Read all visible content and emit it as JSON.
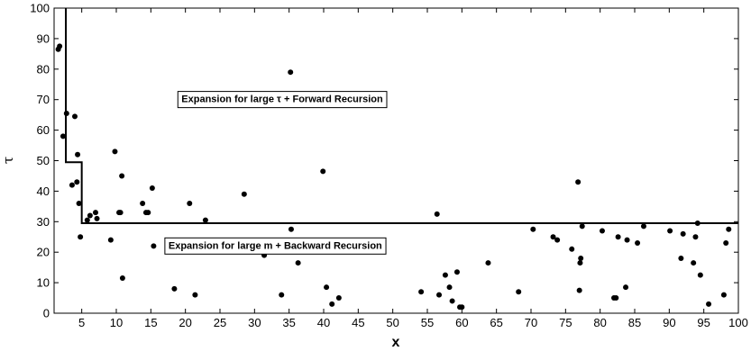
{
  "chart_data": {
    "type": "scatter",
    "xlabel": "x",
    "ylabel": "τ",
    "xlim": [
      1,
      100
    ],
    "ylim": [
      0,
      100
    ],
    "xticks": [
      5,
      10,
      15,
      20,
      25,
      30,
      35,
      40,
      45,
      50,
      55,
      60,
      65,
      70,
      75,
      80,
      85,
      90,
      95,
      100
    ],
    "yticks": [
      0,
      10,
      20,
      30,
      40,
      50,
      60,
      70,
      80,
      90,
      100
    ],
    "grid": false,
    "annotations": [
      {
        "text": "Expansion for large τ + Forward Recursion",
        "x": 34,
        "y": 70
      },
      {
        "text": "Expansion for large m + Backward Recursion",
        "x": 33,
        "y": 22
      }
    ],
    "boundary": {
      "x": [
        2.7,
        2.7,
        5,
        5,
        100
      ],
      "y": [
        100,
        49.5,
        49.5,
        29.5,
        29.5
      ]
    },
    "points": {
      "x": [
        1.6,
        1.8,
        2.3,
        2.8,
        3.6,
        4.0,
        4.3,
        4.4,
        4.6,
        4.8,
        5.8,
        6.2,
        7.0,
        7.2,
        9.2,
        9.8,
        10.4,
        10.6,
        10.8,
        10.9,
        13.8,
        14.3,
        14.6,
        15.2,
        15.4,
        18.4,
        20.6,
        21.4,
        21.6,
        22.9,
        28.5,
        31.4,
        33.9,
        35.2,
        35.3,
        36.3,
        39.9,
        40.4,
        41.2,
        42.2,
        54.1,
        56.4,
        56.7,
        57.6,
        58.2,
        58.6,
        59.3,
        59.7,
        60.0,
        63.8,
        68.2,
        70.3,
        73.2,
        73.8,
        75.9,
        76.8,
        77.0,
        77.1,
        77.2,
        77.4,
        80.3,
        82.0,
        82.3,
        82.6,
        83.7,
        83.9,
        85.4,
        86.3,
        90.1,
        91.7,
        92.0,
        93.5,
        93.8,
        94.1,
        94.5,
        95.7,
        97.9,
        98.2,
        98.6
      ],
      "y": [
        86.5,
        87.5,
        58,
        65.5,
        42,
        64.5,
        43,
        52,
        36,
        25,
        30.5,
        32,
        33,
        31,
        24,
        53,
        33,
        33,
        45,
        11.5,
        36,
        33,
        33,
        41,
        22,
        8,
        36,
        6,
        23,
        30.5,
        39,
        19,
        6,
        79,
        27.5,
        16.5,
        46.5,
        8.5,
        3,
        5,
        7,
        32.5,
        6,
        12.5,
        8.5,
        4,
        13.5,
        2,
        2,
        16.5,
        7,
        27.5,
        25,
        24,
        21,
        43,
        7.5,
        16.5,
        18,
        28.5,
        27,
        5,
        5,
        25,
        8.5,
        24,
        23,
        28.5,
        27,
        18,
        26,
        16.5,
        25,
        29.5,
        12.5,
        3,
        6,
        23,
        27.5
      ]
    }
  }
}
